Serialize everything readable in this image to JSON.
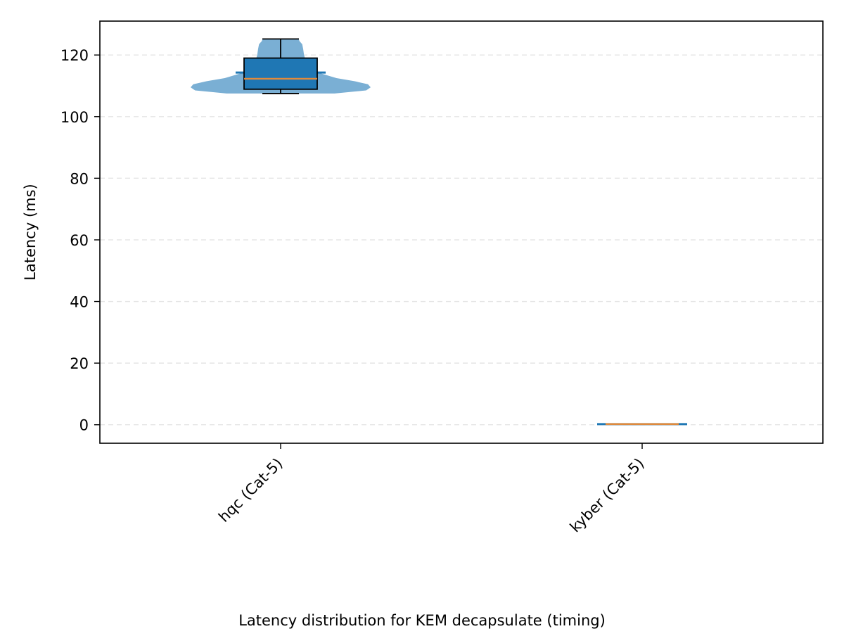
{
  "chart_data": {
    "type": "violin",
    "caption": "Latency distribution for KEM decapsulate (timing)",
    "xlabel": "",
    "ylabel": "Latency (ms)",
    "categories": [
      "hqc (Cat-5)",
      "kyber (Cat-5)"
    ],
    "ylim": [
      -6,
      131
    ],
    "yticks": [
      "0",
      "20",
      "40",
      "60",
      "80",
      "100",
      "120"
    ],
    "ytick_values": [
      0,
      20,
      40,
      60,
      80,
      100,
      120
    ],
    "grid": "y-dashed",
    "colors": {
      "violin": "#7aafd4",
      "box": "#1f77b4",
      "median": "#e08a3c",
      "mean_line": "#1f77b4",
      "grid": "#e5e5e5"
    },
    "series": [
      {
        "category": "hqc (Cat-5)",
        "min": 107.5,
        "q1": 108.9,
        "median": 112.3,
        "q3": 119.0,
        "max": 125.2,
        "mean": 114.3,
        "density": [
          [
            107.5,
            0.6
          ],
          [
            108.5,
            0.95
          ],
          [
            109.5,
            1.0
          ],
          [
            110.5,
            0.97
          ],
          [
            111.5,
            0.82
          ],
          [
            112.5,
            0.62
          ],
          [
            114.0,
            0.45
          ],
          [
            116.0,
            0.33
          ],
          [
            118.0,
            0.28
          ],
          [
            120.0,
            0.26
          ],
          [
            122.0,
            0.25
          ],
          [
            123.5,
            0.24
          ],
          [
            124.5,
            0.21
          ],
          [
            125.2,
            0.2
          ]
        ]
      },
      {
        "category": "kyber (Cat-5)",
        "min": 0.1,
        "q1": 0.15,
        "median": 0.2,
        "q3": 0.25,
        "max": 0.3,
        "mean": 0.2,
        "density": []
      }
    ]
  }
}
